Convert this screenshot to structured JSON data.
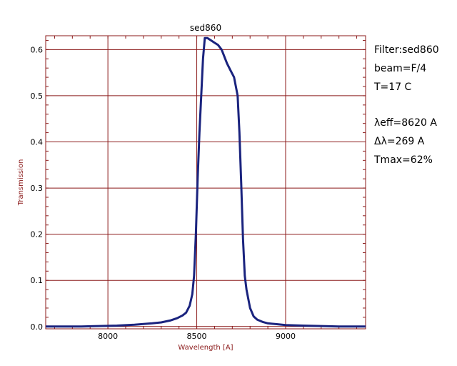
{
  "chart_data": {
    "type": "line",
    "title": "sed860",
    "xlabel": "Wavelength [A]",
    "ylabel": "Transmission",
    "xlim": [
      7650,
      9450
    ],
    "ylim": [
      -0.005,
      0.63
    ],
    "grid": true,
    "x_ticks": [
      8000,
      8500,
      9000
    ],
    "x_tick_labels": [
      "8000",
      "8500",
      "9000"
    ],
    "y_ticks": [
      0.0,
      0.1,
      0.2,
      0.3,
      0.4,
      0.5,
      0.6
    ],
    "y_tick_labels": [
      "0.0",
      "0.1",
      "0.2",
      "0.3",
      "0.4",
      "0.5",
      "0.6"
    ],
    "series": [
      {
        "color": "#1a237e",
        "x": [
          7650,
          7750,
          7850,
          7950,
          8050,
          8150,
          8250,
          8300,
          8350,
          8390,
          8420,
          8440,
          8460,
          8475,
          8485,
          8495,
          8505,
          8515,
          8525,
          8535,
          8545,
          8560,
          8580,
          8600,
          8620,
          8640,
          8660,
          8670,
          8690,
          8710,
          8720,
          8730,
          8740,
          8750,
          8760,
          8770,
          8780,
          8790,
          8800,
          8820,
          8840,
          8870,
          8900,
          8950,
          9000,
          9100,
          9200,
          9300,
          9400,
          9450
        ],
        "y": [
          0.0,
          0.0,
          0.0,
          0.001,
          0.002,
          0.004,
          0.007,
          0.009,
          0.013,
          0.018,
          0.024,
          0.03,
          0.045,
          0.07,
          0.11,
          0.2,
          0.32,
          0.42,
          0.5,
          0.58,
          0.625,
          0.625,
          0.62,
          0.615,
          0.61,
          0.6,
          0.58,
          0.57,
          0.555,
          0.54,
          0.52,
          0.5,
          0.42,
          0.31,
          0.19,
          0.11,
          0.08,
          0.06,
          0.04,
          0.022,
          0.015,
          0.01,
          0.007,
          0.005,
          0.003,
          0.002,
          0.001,
          0.0,
          0.0,
          0.0
        ]
      }
    ]
  },
  "info": {
    "filter": "Filter:sed860",
    "beam": "beam=F/4",
    "temperature": "T=17 C",
    "lambda_eff": "λeff=8620 A",
    "delta_lambda": "Δλ=269 A",
    "tmax": "Tmax=62%"
  }
}
